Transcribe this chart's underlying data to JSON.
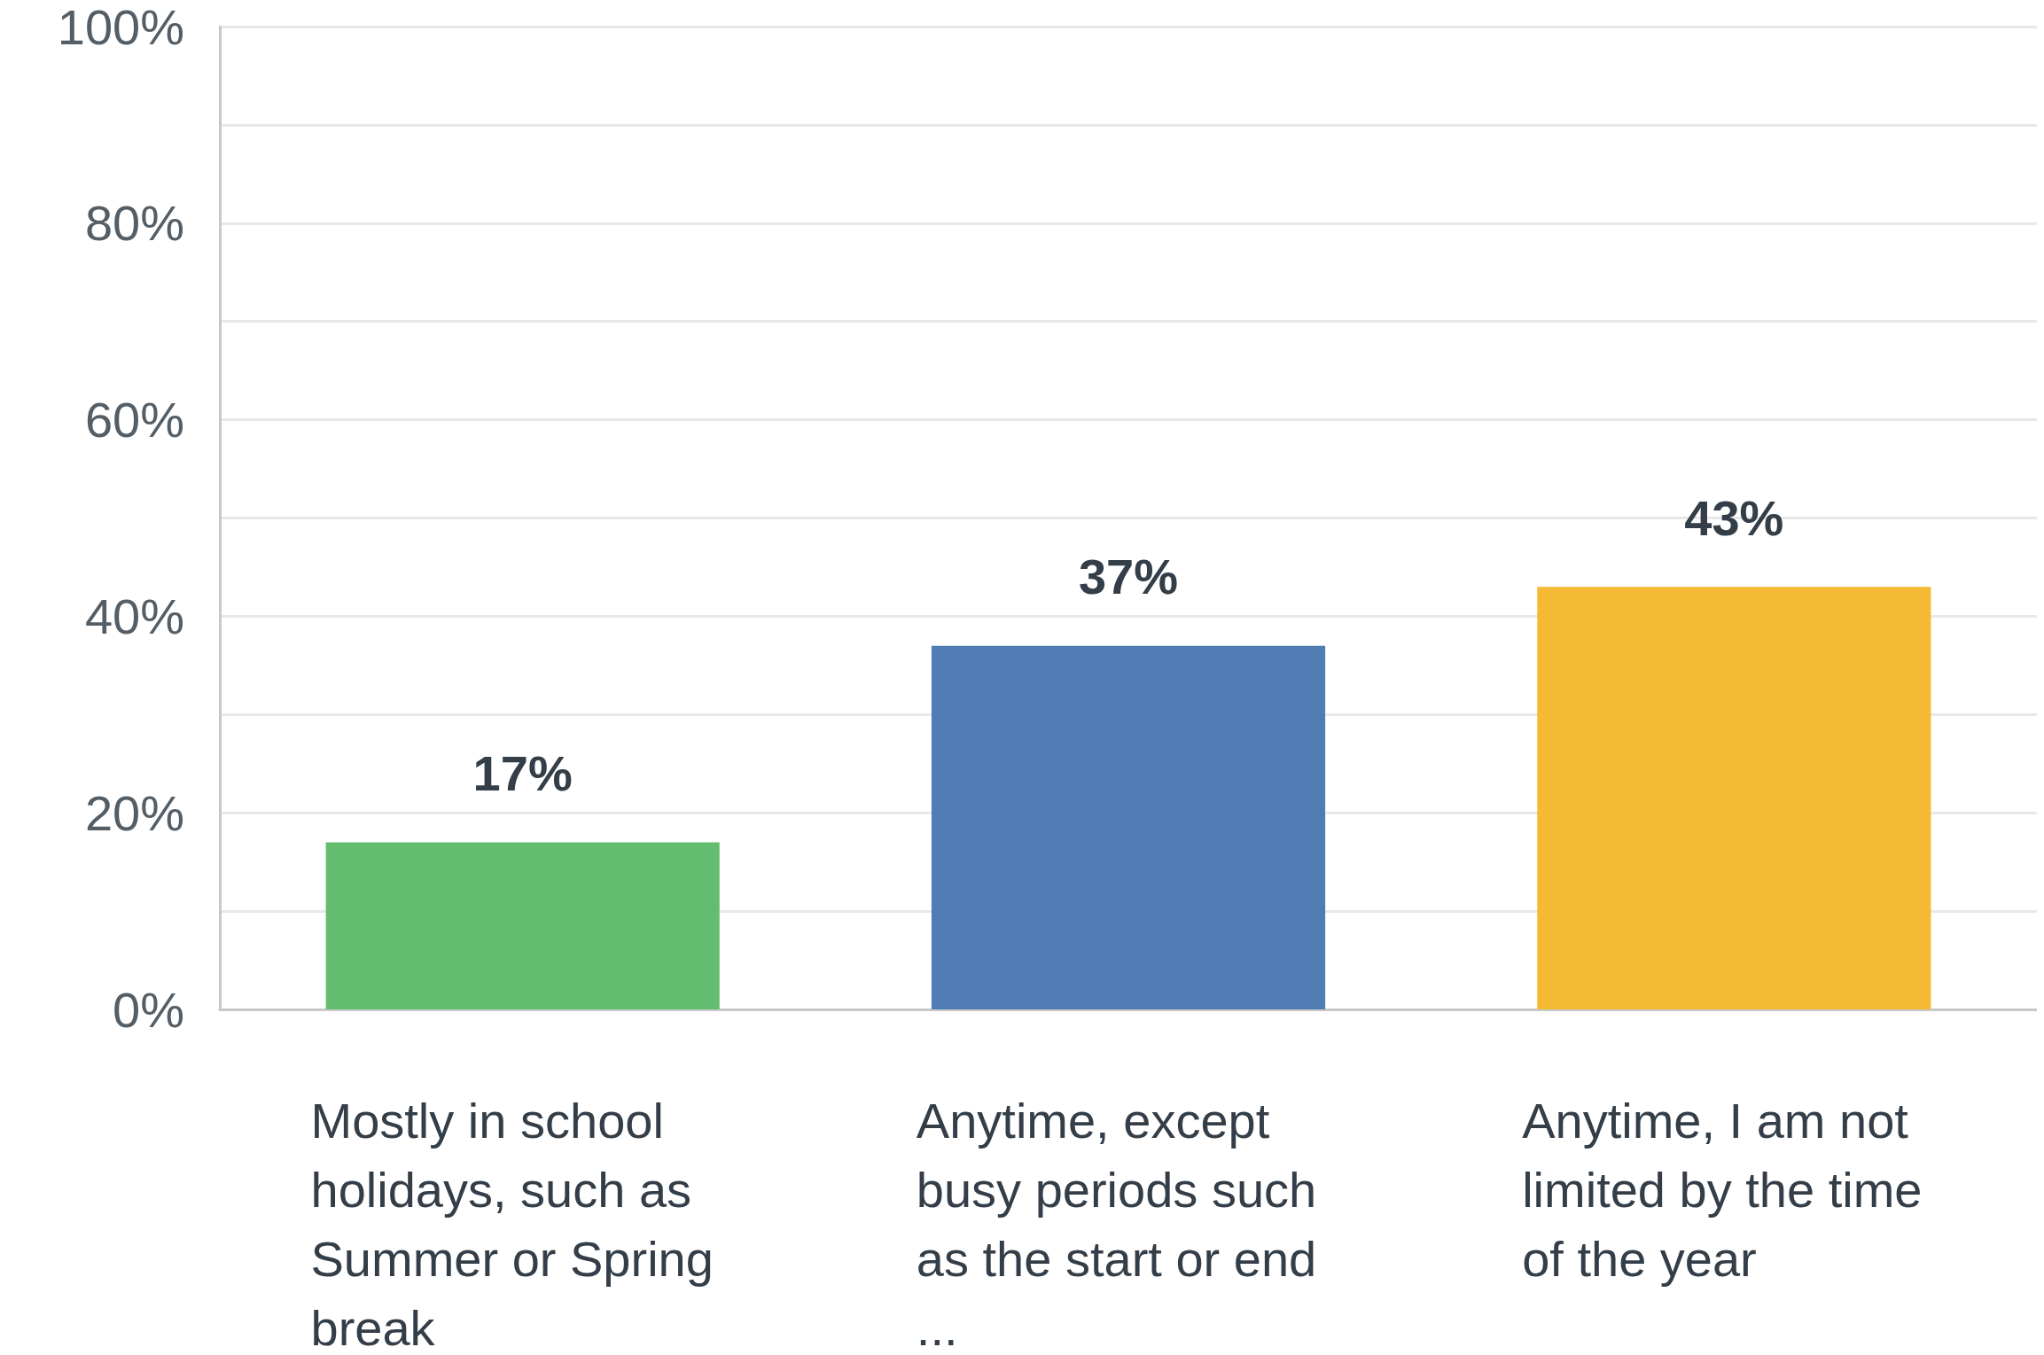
{
  "chart_data": {
    "type": "bar",
    "categories": [
      "Mostly in school holidays, such as Summer or Spring break",
      "Anytime, except busy periods such as the start or end ...",
      "Anytime, I am not limited by the time of the year"
    ],
    "values": [
      17,
      37,
      43
    ],
    "colors": [
      "#62be6e",
      "#4f7cb3",
      "#f4ba33"
    ],
    "value_labels": [
      "17%",
      "37%",
      "43%"
    ],
    "ylim": [
      0,
      100
    ],
    "yticks": [
      {
        "value": 0,
        "label": "0%"
      },
      {
        "value": 10,
        "label": null
      },
      {
        "value": 20,
        "label": "20%"
      },
      {
        "value": 30,
        "label": null
      },
      {
        "value": 40,
        "label": "40%"
      },
      {
        "value": 50,
        "label": null
      },
      {
        "value": 60,
        "label": "60%"
      },
      {
        "value": 70,
        "label": null
      },
      {
        "value": 80,
        "label": "80%"
      },
      {
        "value": 90,
        "label": null
      },
      {
        "value": 100,
        "label": "100%"
      }
    ],
    "grid": "y"
  }
}
